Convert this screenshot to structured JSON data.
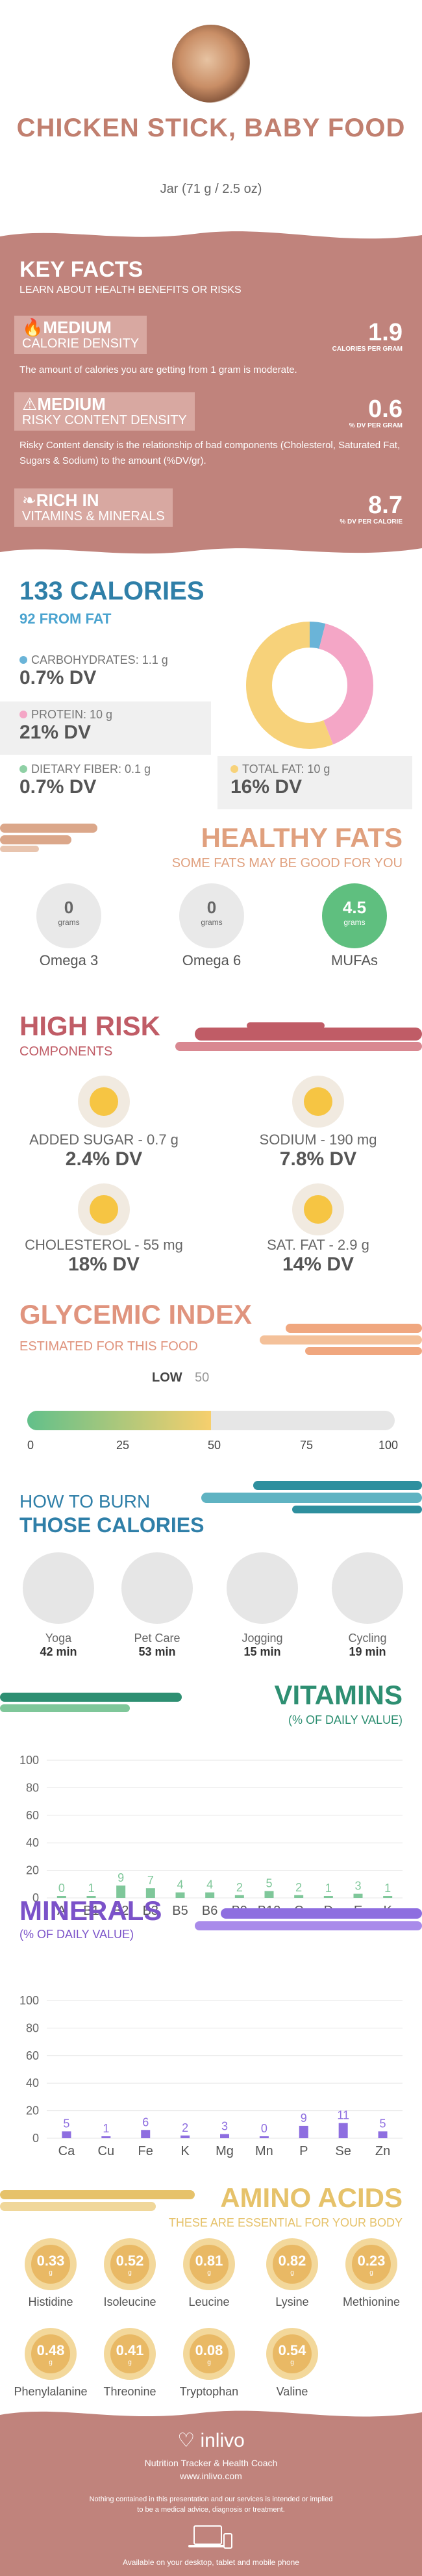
{
  "header": {
    "title": "CHICKEN STICK, BABY FOOD",
    "serving": "Jar (71 g / 2.5 oz)"
  },
  "key_facts": {
    "title": "KEY FACTS",
    "subtitle": "LEARN ABOUT HEALTH BENEFITS OR RISKS",
    "items": [
      {
        "level": "MEDIUM",
        "name": "CALORIE DENSITY",
        "value": "1.9",
        "unit": "CALORIES PER GRAM",
        "desc": "The amount of calories you are getting from 1 gram is moderate."
      },
      {
        "level": "MEDIUM",
        "name": "RISKY CONTENT DENSITY",
        "value": "0.6",
        "unit": "% DV PER GRAM",
        "desc": "Risky Content density is the relationship of bad components (Cholesterol, Saturated Fat, Sugars & Sodium) to the amount (%DV/gr)."
      },
      {
        "level": "RICH  IN",
        "name": "VITAMINS & MINERALS",
        "value": "8.7",
        "unit": "% DV PER CALORIE",
        "desc": ""
      }
    ]
  },
  "calories": {
    "title": "133 CALORIES",
    "from_fat": "92 FROM FAT",
    "nutrients": [
      {
        "name": "CARBOHYDRATES: 1.1 g",
        "dv": "0.7% DV",
        "color": "#6ab4d8"
      },
      {
        "name": "PROTEIN: 10 g",
        "dv": "21% DV",
        "color": "#f4a6c6"
      },
      {
        "name": "DIETARY FIBER: 0.1 g",
        "dv": "0.7% DV",
        "color": "#8fd0a5"
      },
      {
        "name": "TOTAL FAT: 10 g",
        "dv": "16% DV",
        "color": "#f7d27a"
      }
    ],
    "donut": [
      {
        "label": "carbohydrates",
        "value": 4,
        "color": "#6ab4d8"
      },
      {
        "label": "protein",
        "value": 40,
        "color": "#f4a6c6"
      },
      {
        "label": "fat",
        "value": 56,
        "color": "#f7d27a"
      }
    ]
  },
  "healthy_fats": {
    "title": "HEALTHY FATS",
    "subtitle": "SOME FATS MAY BE GOOD FOR YOU",
    "unit": "grams",
    "items": [
      {
        "value": "0",
        "name": "Omega 3"
      },
      {
        "value": "0",
        "name": "Omega 6"
      },
      {
        "value": "4.5",
        "name": "MUFAs"
      }
    ]
  },
  "high_risk": {
    "title": "HIGH RISK",
    "subtitle": "COMPONENTS",
    "items": [
      {
        "name": "ADDED SUGAR - 0.7 g",
        "dv": "2.4% DV"
      },
      {
        "name": "SODIUM - 190 mg",
        "dv": "7.8% DV"
      },
      {
        "name": "CHOLESTEROL - 55 mg",
        "dv": "18% DV"
      },
      {
        "name": "SAT. FAT - 2.9 g",
        "dv": "14% DV"
      }
    ]
  },
  "glycemic": {
    "title": "GLYCEMIC INDEX",
    "subtitle": "ESTIMATED FOR THIS FOOD",
    "level": "LOW",
    "value": 50,
    "value_label": "50",
    "ticks": [
      "0",
      "25",
      "50",
      "75",
      "100"
    ]
  },
  "burn": {
    "title1": "HOW TO BURN",
    "title2": "THOSE CALORIES",
    "items": [
      {
        "name": "Yoga",
        "time": "42 min"
      },
      {
        "name": "Pet Care",
        "time": "53 min"
      },
      {
        "name": "Jogging",
        "time": "15 min"
      },
      {
        "name": "Cycling",
        "time": "19 min"
      }
    ]
  },
  "vitamins": {
    "title": "VITAMINS",
    "subtitle": "(% OF DAILY VALUE)"
  },
  "minerals": {
    "title": "MINERALS",
    "subtitle": "(% OF DAILY VALUE)"
  },
  "chart_data": [
    {
      "type": "bar",
      "categories": [
        "A",
        "B1",
        "B2",
        "B3",
        "B5",
        "B6",
        "B9",
        "B12",
        "C",
        "D",
        "E",
        "K"
      ],
      "values": [
        0,
        1,
        9,
        7,
        4,
        4,
        2,
        5,
        2,
        1,
        3,
        1
      ],
      "value_labels": [
        "0",
        "1",
        "9",
        "7",
        "4",
        "4",
        "2",
        "5",
        "2",
        "1",
        "3",
        "1"
      ],
      "yticks": [
        "0",
        "20",
        "40",
        "60",
        "80",
        "100"
      ],
      "ylim": [
        0,
        100
      ],
      "color": "#7fc79a"
    },
    {
      "type": "bar",
      "categories": [
        "Ca",
        "Cu",
        "Fe",
        "K",
        "Mg",
        "Mn",
        "P",
        "Se",
        "Zn"
      ],
      "values": [
        5,
        1,
        6,
        2,
        3,
        0,
        9,
        11,
        5
      ],
      "value_labels": [
        "5",
        "1",
        "6",
        "2",
        "3",
        "0",
        "9",
        "11",
        "5"
      ],
      "yticks": [
        "0",
        "20",
        "40",
        "60",
        "80",
        "100"
      ],
      "ylim": [
        0,
        100
      ],
      "color": "#8e6ee0"
    }
  ],
  "amino": {
    "title": "AMINO ACIDS",
    "subtitle": "THESE ARE ESSENTIAL FOR YOUR BODY",
    "unit": "g",
    "items": [
      {
        "value": "0.33",
        "name": "Histidine"
      },
      {
        "value": "0.52",
        "name": "Isoleucine"
      },
      {
        "value": "0.81",
        "name": "Leucine"
      },
      {
        "value": "0.82",
        "name": "Lysine"
      },
      {
        "value": "0.23",
        "name": "Methionine"
      },
      {
        "value": "0.48",
        "name": "Phenylalanine"
      },
      {
        "value": "0.41",
        "name": "Threonine"
      },
      {
        "value": "0.08",
        "name": "Tryptophan"
      },
      {
        "value": "0.54",
        "name": "Valine"
      }
    ]
  },
  "footer": {
    "brand": "inlivo",
    "tagline": "Nutrition Tracker & Health Coach",
    "url": "www.inlivo.com",
    "disclaimer1": "Nothing contained in this presentation and our services is intended or implied",
    "disclaimer2": "to be a medical advice, diagnosis or treatment.",
    "available": "Available on your desktop, tablet and mobile phone"
  }
}
